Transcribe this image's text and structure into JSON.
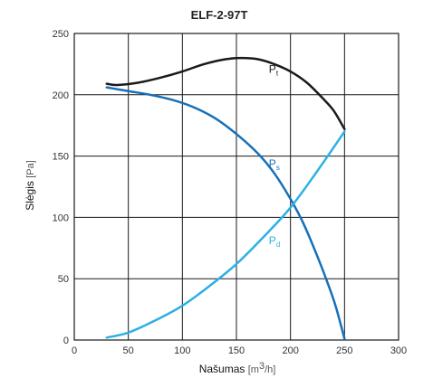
{
  "chart_data": {
    "type": "line",
    "title": "ELF-2-97T",
    "xlabel": "Našumas",
    "xlabel_unit_prefix": "[m",
    "xlabel_unit_sup": "3",
    "xlabel_unit_suffix": "/h]",
    "ylabel": "Slėgis",
    "ylabel_unit": "[Pa]",
    "xlim": [
      0,
      300
    ],
    "ylim": [
      0,
      250
    ],
    "x_ticks": [
      0,
      50,
      100,
      150,
      200,
      250,
      300
    ],
    "y_ticks": [
      0,
      50,
      100,
      150,
      200,
      250
    ],
    "grid": true,
    "series": [
      {
        "name": "Pt",
        "label_main": "P",
        "label_sub": "t",
        "label_at": [
          180,
          218
        ],
        "color": "#1a1a1a",
        "x": [
          30,
          40,
          60,
          80,
          100,
          120,
          140,
          155,
          170,
          185,
          200,
          215,
          230,
          240,
          250
        ],
        "y": [
          209,
          208,
          210,
          214,
          219,
          225,
          229,
          230,
          229,
          225,
          219,
          210,
          197,
          187,
          172
        ]
      },
      {
        "name": "Ps",
        "label_main": "P",
        "label_sub": "s",
        "label_at": [
          180,
          141
        ],
        "color": "#1670b8",
        "x": [
          30,
          50,
          70,
          90,
          110,
          130,
          150,
          170,
          185,
          200,
          212,
          225,
          235,
          242,
          250
        ],
        "y": [
          206,
          203,
          200,
          196,
          190,
          181,
          168,
          152,
          136,
          115,
          95,
          68,
          45,
          27,
          1
        ]
      },
      {
        "name": "Pd",
        "label_main": "P",
        "label_sub": "d",
        "label_at": [
          180,
          78
        ],
        "color": "#2cb0e6",
        "x": [
          30,
          50,
          75,
          100,
          125,
          150,
          175,
          200,
          225,
          250
        ],
        "y": [
          2,
          6,
          16,
          28,
          44,
          62,
          84,
          108,
          138,
          170
        ]
      }
    ]
  }
}
